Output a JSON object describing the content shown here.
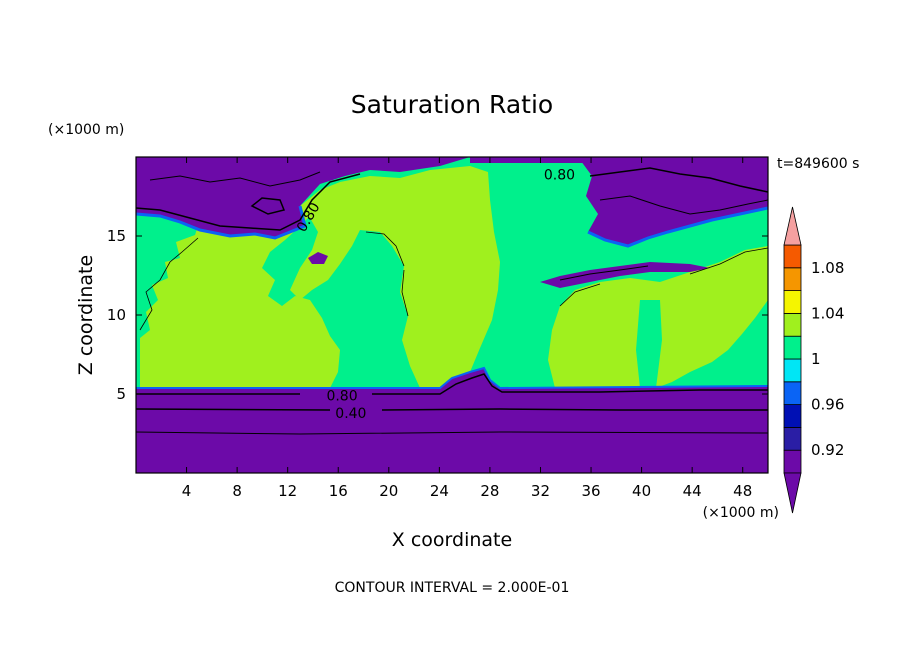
{
  "chart_data": {
    "type": "heatmap",
    "title": "Saturation Ratio",
    "time_label": "t=849600 s",
    "xlabel": "X coordinate",
    "ylabel": "Z coordinate",
    "x_unit": "(×1000 m)",
    "y_unit": "(×1000 m)",
    "xlim": [
      0,
      50
    ],
    "ylim": [
      0,
      20
    ],
    "x_ticks": [
      4,
      8,
      12,
      16,
      20,
      24,
      28,
      32,
      36,
      40,
      44,
      48
    ],
    "y_ticks": [
      5,
      10,
      15
    ],
    "footer": "CONTOUR INTERVAL = 2.000E-01",
    "contour_labels": [
      {
        "text": "0.80",
        "x": 33.5,
        "y": 18.9
      },
      {
        "text": "0.80",
        "x": 13.6,
        "y": 16.2
      },
      {
        "text": "0.80",
        "x": 16.3,
        "y": 4.9
      },
      {
        "text": "0.40",
        "x": 17.0,
        "y": 3.8
      }
    ],
    "colorbar": {
      "boundaries": [
        0.9,
        0.92,
        0.94,
        0.96,
        0.98,
        1.0,
        1.02,
        1.04,
        1.06,
        1.08,
        1.1
      ],
      "colors": [
        "#6c0aa8",
        "#2a1ea5",
        "#0010b4",
        "#0a64f5",
        "#00e6f5",
        "#00f08c",
        "#a0f01e",
        "#f5f500",
        "#f59600",
        "#f55a00",
        "#f5282a"
      ],
      "under_color": "#6c0aa8",
      "over_color": "#f5a0a0",
      "labels": [
        {
          "text": "0.92",
          "value": 0.92
        },
        {
          "text": "0.96",
          "value": 0.96
        },
        {
          "text": "1",
          "value": 1.0
        },
        {
          "text": "1.04",
          "value": 1.04
        },
        {
          "text": "1.08",
          "value": 1.08
        }
      ]
    }
  }
}
